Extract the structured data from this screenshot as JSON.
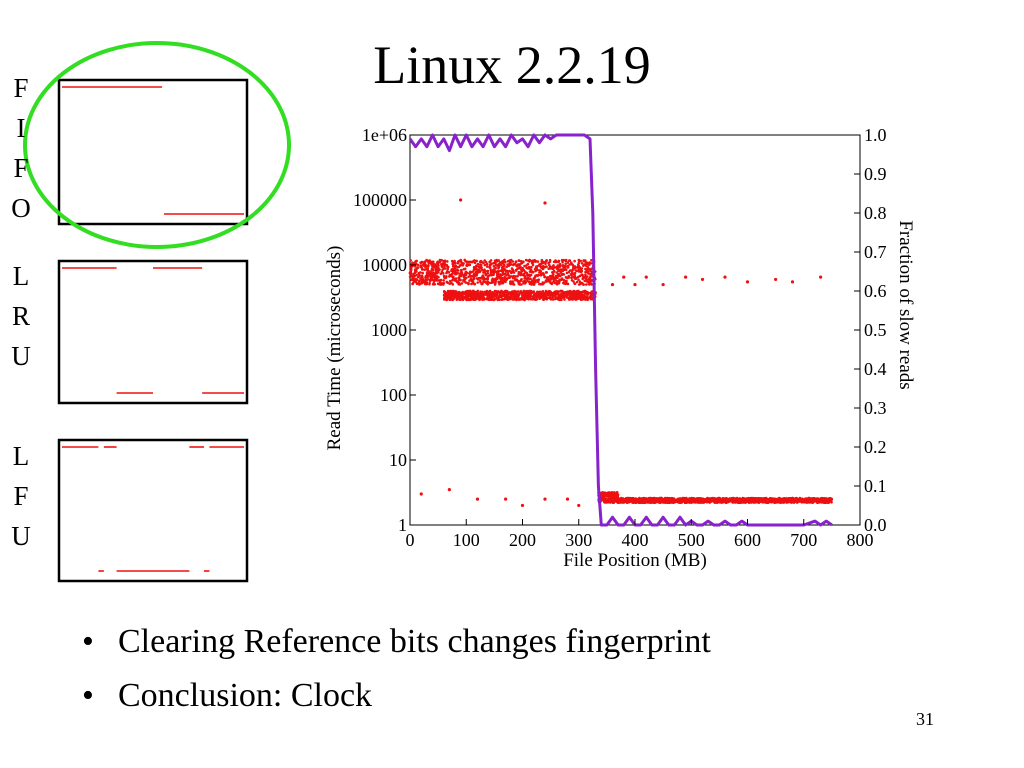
{
  "slide": {
    "title": "Linux 2.2.19",
    "page_number": "31",
    "bullets": [
      "Clearing Reference bits changes fingerprint",
      "Conclusion:  Clock"
    ]
  },
  "policies": [
    {
      "name": "FIFO",
      "letters": [
        "F",
        "I",
        "F",
        "O"
      ],
      "highlighted": true,
      "top_segments": [
        [
          0.0,
          0.55
        ]
      ],
      "bottom_segments": [
        [
          0.56,
          1.0
        ]
      ]
    },
    {
      "name": "LRU",
      "letters": [
        "L",
        "R",
        "U"
      ],
      "highlighted": false,
      "top_segments": [
        [
          0.0,
          0.3
        ],
        [
          0.5,
          0.77
        ]
      ],
      "bottom_segments": [
        [
          0.3,
          0.5
        ],
        [
          0.77,
          1.0
        ]
      ]
    },
    {
      "name": "LFU",
      "letters": [
        "L",
        "F",
        "U"
      ],
      "highlighted": false,
      "top_segments": [
        [
          0.0,
          0.2
        ],
        [
          0.23,
          0.3
        ],
        [
          0.7,
          0.78
        ],
        [
          0.81,
          1.0
        ]
      ],
      "bottom_segments": [
        [
          0.2,
          0.23
        ],
        [
          0.3,
          0.7
        ],
        [
          0.78,
          0.81
        ]
      ]
    }
  ],
  "colors": {
    "highlight": "#33dd22",
    "segment": "#ee1111",
    "reads": "#ee1111",
    "fraction": "#8822cc"
  },
  "chart_data": {
    "type": "scatter",
    "xlabel": "File Position (MB)",
    "ylabel": "Read Time (microseconds)",
    "y2label": "Fraction of slow reads",
    "xlim": [
      0,
      800
    ],
    "ylim": [
      1,
      1000000
    ],
    "y2lim": [
      0,
      1
    ],
    "yscale": "log",
    "x_ticks": [
      "0",
      "100",
      "200",
      "300",
      "400",
      "500",
      "600",
      "700",
      "800"
    ],
    "y_ticks": [
      "1",
      "10",
      "100",
      "1000",
      "10000",
      "100000",
      "1e+06"
    ],
    "y2_ticks": [
      "0.0",
      "0.1",
      "0.2",
      "0.3",
      "0.4",
      "0.5",
      "0.6",
      "0.7",
      "0.8",
      "0.9",
      "1.0"
    ],
    "grid": false,
    "series": [
      {
        "axis": "y",
        "style": "points",
        "bands": [
          {
            "x": [
              0,
              330
            ],
            "y": [
              5000,
              12000
            ]
          },
          {
            "x": [
              60,
              330
            ],
            "y": [
              2900,
              4000
            ]
          },
          {
            "x": [
              335,
              750
            ],
            "y": [
              2.2,
              2.6
            ]
          },
          {
            "x": [
              335,
              370
            ],
            "y": [
              2.7,
              3.2
            ]
          }
        ],
        "points": [
          [
            10,
            8000
          ],
          [
            35,
            7000
          ],
          [
            90,
            100000
          ],
          [
            240,
            90000
          ],
          [
            360,
            5000
          ],
          [
            380,
            6500
          ],
          [
            400,
            5000
          ],
          [
            420,
            6500
          ],
          [
            450,
            5000
          ],
          [
            490,
            6500
          ],
          [
            520,
            6000
          ],
          [
            560,
            6500
          ],
          [
            600,
            5500
          ],
          [
            650,
            6000
          ],
          [
            680,
            5500
          ],
          [
            730,
            6500
          ],
          [
            20,
            3
          ],
          [
            70,
            3.5
          ],
          [
            120,
            2.5
          ],
          [
            170,
            2.5
          ],
          [
            200,
            2
          ],
          [
            240,
            2.5
          ],
          [
            280,
            2.5
          ],
          [
            300,
            2
          ]
        ]
      },
      {
        "axis": "y2",
        "style": "line",
        "x": [
          0,
          10,
          20,
          30,
          40,
          50,
          60,
          70,
          80,
          90,
          100,
          110,
          120,
          130,
          140,
          150,
          160,
          170,
          180,
          190,
          200,
          210,
          220,
          230,
          240,
          250,
          260,
          270,
          280,
          290,
          300,
          310,
          320,
          325,
          330,
          335,
          340,
          350,
          360,
          370,
          380,
          390,
          400,
          410,
          420,
          430,
          440,
          450,
          460,
          470,
          480,
          490,
          500,
          510,
          520,
          530,
          540,
          550,
          560,
          570,
          580,
          590,
          600,
          650,
          700,
          720,
          730,
          740,
          750
        ],
        "y": [
          0.99,
          0.97,
          0.99,
          0.97,
          1.0,
          0.97,
          0.99,
          0.96,
          1.0,
          0.97,
          1.0,
          0.97,
          0.99,
          0.97,
          1.0,
          0.97,
          0.99,
          0.97,
          1.0,
          0.98,
          0.99,
          0.97,
          1.0,
          0.98,
          1.0,
          0.99,
          1.0,
          1.0,
          1.0,
          1.0,
          1.0,
          1.0,
          0.99,
          0.8,
          0.4,
          0.1,
          0.0,
          0.0,
          0.02,
          0.0,
          0.0,
          0.02,
          0.0,
          0.0,
          0.02,
          0.0,
          0.0,
          0.02,
          0.0,
          0.0,
          0.02,
          0.0,
          0.01,
          0.0,
          0.0,
          0.01,
          0.0,
          0.0,
          0.01,
          0.0,
          0.0,
          0.01,
          0.0,
          0.0,
          0.0,
          0.01,
          0.0,
          0.01,
          0.0
        ]
      }
    ]
  }
}
